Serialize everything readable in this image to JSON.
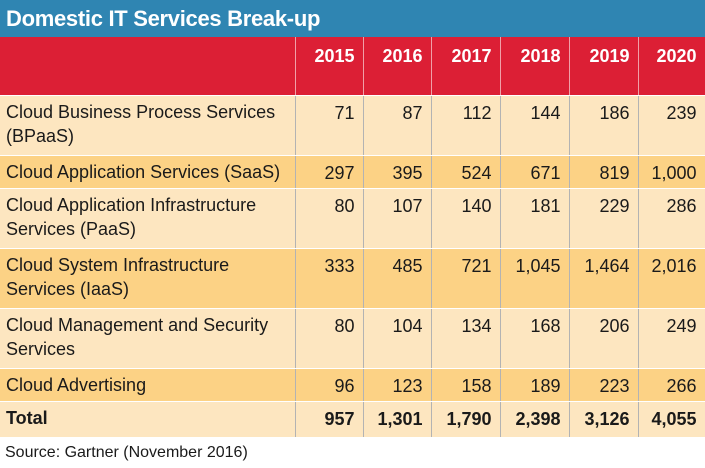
{
  "title": "Domestic IT Services Break-up",
  "source": "Source: Gartner (November 2016)",
  "colors": {
    "title_bg": "#2f85b2",
    "header_bg": "#dc1f35",
    "row_light": "#fde6c0",
    "row_dark": "#fcd285"
  },
  "chart_data": {
    "type": "table",
    "title": "Domestic IT Services Break-up",
    "columns": [
      "2015",
      "2016",
      "2017",
      "2018",
      "2019",
      "2020"
    ],
    "rows": [
      {
        "label": "Cloud Business Process Services (BPaaS)",
        "values": [
          "71",
          "87",
          "112",
          "144",
          "186",
          "239"
        ]
      },
      {
        "label": "Cloud Application Services (SaaS)",
        "values": [
          "297",
          "395",
          "524",
          "671",
          "819",
          "1,000"
        ]
      },
      {
        "label": "Cloud Application Infrastructure Services (PaaS)",
        "values": [
          "80",
          "107",
          "140",
          "181",
          "229",
          "286"
        ]
      },
      {
        "label": "Cloud System Infrastructure Services (IaaS)",
        "values": [
          "333",
          "485",
          "721",
          "1,045",
          "1,464",
          "2,016"
        ]
      },
      {
        "label": "Cloud Management and Security Services",
        "values": [
          "80",
          "104",
          "134",
          "168",
          "206",
          "249"
        ]
      },
      {
        "label": "Cloud Advertising",
        "values": [
          "96",
          "123",
          "158",
          "189",
          "223",
          "266"
        ]
      },
      {
        "label": "Total",
        "values": [
          "957",
          "1,301",
          "1,790",
          "2,398",
          "3,126",
          "4,055"
        ]
      }
    ]
  }
}
